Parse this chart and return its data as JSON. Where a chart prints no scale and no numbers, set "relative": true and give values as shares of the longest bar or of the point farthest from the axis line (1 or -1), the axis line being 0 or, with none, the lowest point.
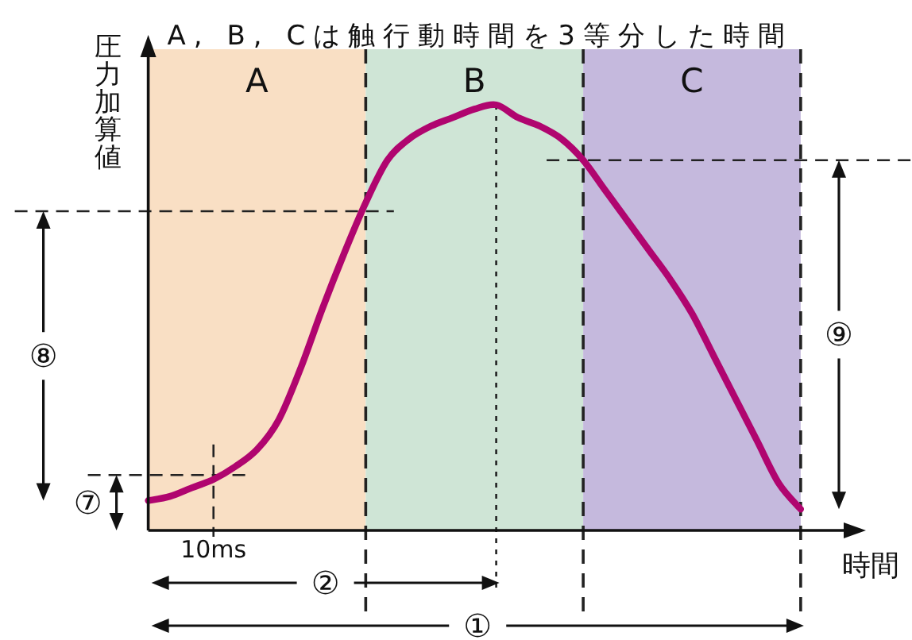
{
  "chart_data": {
    "type": "line",
    "title": "A, B, Cは触行動時間を3等分した時間",
    "xlabel": "時間",
    "ylabel": "圧力加算値",
    "relative": true,
    "grid": "x",
    "categories": [
      null,
      null,
      null,
      null,
      null,
      null,
      null,
      null,
      null,
      null,
      null,
      null,
      null,
      null,
      null,
      null,
      null,
      null,
      null,
      null,
      null,
      null,
      null,
      null,
      null,
      null,
      null,
      null,
      null,
      null,
      null
    ],
    "series": [
      {
        "color": "#b0056f",
        "values": [
          0.07,
          0.08,
          0.1,
          0.12,
          0.15,
          0.19,
          0.26,
          0.38,
          0.52,
          0.65,
          0.77,
          0.87,
          0.92,
          0.95,
          0.97,
          0.99,
          1,
          0.97,
          0.95,
          0.92,
          0.87,
          0.8,
          0.73,
          0.66,
          0.59,
          0.51,
          0.41,
          0.31,
          0.21,
          0.11,
          0.05
        ]
      }
    ],
    "ref_lines": [
      {
        "axis": "y",
        "value": 0.13,
        "line_style": "dashed"
      },
      {
        "axis": "y",
        "value": 0.75,
        "line_style": "dashed"
      },
      {
        "axis": "y",
        "value": 0.87,
        "line_style": "dashed"
      }
    ],
    "annotations": [
      "A",
      "B",
      "C",
      "⑧",
      "⑨",
      "⑦",
      "10ms",
      "②",
      "①"
    ]
  }
}
